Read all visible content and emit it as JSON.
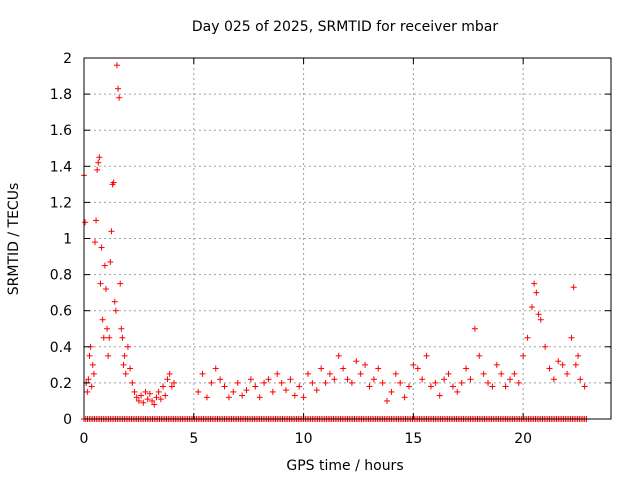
{
  "chart_data": {
    "type": "scatter",
    "title": "Day 025 of 2025, SRMTID for receiver mbar",
    "xlabel": "GPS time / hours",
    "ylabel": "SRMTID / TECUs",
    "xlim": [
      0,
      24
    ],
    "ylim": [
      0,
      2
    ],
    "xticks": [
      0,
      5,
      10,
      15,
      20
    ],
    "xtick_labels": [
      "0",
      "5",
      "10",
      "15",
      "20"
    ],
    "yticks": [
      0,
      0.2,
      0.4,
      0.6,
      0.8,
      1,
      1.2,
      1.4,
      1.6,
      1.8,
      2
    ],
    "ytick_labels": [
      "0",
      "0.2",
      "0.4",
      "0.6",
      "0.8",
      "1",
      "1.2",
      "1.4",
      "1.6",
      "1.8",
      "2"
    ],
    "grid": true,
    "marker": "+",
    "point_color": "#ff0000",
    "series": [
      {
        "name": "SRMTID",
        "points": [
          [
            0.0,
            1.35
          ],
          [
            0.05,
            1.09
          ],
          [
            0.1,
            0.2
          ],
          [
            0.15,
            0.15
          ],
          [
            0.2,
            0.22
          ],
          [
            0.25,
            0.35
          ],
          [
            0.3,
            0.4
          ],
          [
            0.35,
            0.18
          ],
          [
            0.4,
            0.3
          ],
          [
            0.45,
            0.25
          ],
          [
            0.5,
            0.98
          ],
          [
            0.55,
            1.1
          ],
          [
            0.6,
            1.38
          ],
          [
            0.65,
            1.42
          ],
          [
            0.7,
            1.45
          ],
          [
            0.75,
            0.75
          ],
          [
            0.8,
            0.95
          ],
          [
            0.85,
            0.55
          ],
          [
            0.9,
            0.45
          ],
          [
            0.95,
            0.85
          ],
          [
            1.0,
            0.72
          ],
          [
            1.05,
            0.5
          ],
          [
            1.1,
            0.35
          ],
          [
            1.15,
            0.45
          ],
          [
            1.2,
            0.87
          ],
          [
            1.25,
            1.04
          ],
          [
            1.3,
            1.3
          ],
          [
            1.35,
            1.31
          ],
          [
            1.4,
            0.65
          ],
          [
            1.45,
            0.6
          ],
          [
            1.5,
            1.96
          ],
          [
            1.55,
            1.83
          ],
          [
            1.6,
            1.78
          ],
          [
            1.65,
            0.75
          ],
          [
            1.7,
            0.5
          ],
          [
            1.75,
            0.45
          ],
          [
            1.8,
            0.3
          ],
          [
            1.85,
            0.35
          ],
          [
            1.9,
            0.25
          ],
          [
            2.0,
            0.4
          ],
          [
            2.1,
            0.28
          ],
          [
            2.2,
            0.2
          ],
          [
            2.3,
            0.15
          ],
          [
            2.4,
            0.12
          ],
          [
            2.5,
            0.1
          ],
          [
            2.6,
            0.13
          ],
          [
            2.7,
            0.09
          ],
          [
            2.8,
            0.15
          ],
          [
            2.9,
            0.11
          ],
          [
            3.0,
            0.14
          ],
          [
            3.1,
            0.1
          ],
          [
            3.2,
            0.08
          ],
          [
            3.3,
            0.12
          ],
          [
            3.4,
            0.15
          ],
          [
            3.5,
            0.11
          ],
          [
            3.6,
            0.18
          ],
          [
            3.7,
            0.13
          ],
          [
            3.8,
            0.22
          ],
          [
            3.9,
            0.25
          ],
          [
            4.0,
            0.18
          ],
          [
            4.1,
            0.2
          ],
          [
            5.2,
            0.15
          ],
          [
            5.4,
            0.25
          ],
          [
            5.6,
            0.12
          ],
          [
            5.8,
            0.2
          ],
          [
            6.0,
            0.28
          ],
          [
            6.2,
            0.22
          ],
          [
            6.4,
            0.18
          ],
          [
            6.6,
            0.12
          ],
          [
            6.8,
            0.15
          ],
          [
            7.0,
            0.2
          ],
          [
            7.2,
            0.13
          ],
          [
            7.4,
            0.16
          ],
          [
            7.6,
            0.22
          ],
          [
            7.8,
            0.18
          ],
          [
            8.0,
            0.12
          ],
          [
            8.2,
            0.2
          ],
          [
            8.4,
            0.22
          ],
          [
            8.6,
            0.15
          ],
          [
            8.8,
            0.25
          ],
          [
            9.0,
            0.2
          ],
          [
            9.2,
            0.16
          ],
          [
            9.4,
            0.22
          ],
          [
            9.6,
            0.13
          ],
          [
            9.8,
            0.18
          ],
          [
            10.0,
            0.12
          ],
          [
            10.2,
            0.25
          ],
          [
            10.4,
            0.2
          ],
          [
            10.6,
            0.16
          ],
          [
            10.8,
            0.28
          ],
          [
            11.0,
            0.2
          ],
          [
            11.2,
            0.25
          ],
          [
            11.4,
            0.22
          ],
          [
            11.6,
            0.35
          ],
          [
            11.8,
            0.28
          ],
          [
            12.0,
            0.22
          ],
          [
            12.2,
            0.2
          ],
          [
            12.4,
            0.32
          ],
          [
            12.6,
            0.25
          ],
          [
            12.8,
            0.3
          ],
          [
            13.0,
            0.18
          ],
          [
            13.2,
            0.22
          ],
          [
            13.4,
            0.28
          ],
          [
            13.6,
            0.2
          ],
          [
            13.8,
            0.1
          ],
          [
            14.0,
            0.15
          ],
          [
            14.2,
            0.25
          ],
          [
            14.4,
            0.2
          ],
          [
            14.6,
            0.12
          ],
          [
            14.8,
            0.18
          ],
          [
            15.0,
            0.3
          ],
          [
            15.2,
            0.28
          ],
          [
            15.4,
            0.22
          ],
          [
            15.6,
            0.35
          ],
          [
            15.8,
            0.18
          ],
          [
            16.0,
            0.2
          ],
          [
            16.2,
            0.13
          ],
          [
            16.4,
            0.22
          ],
          [
            16.6,
            0.25
          ],
          [
            16.8,
            0.18
          ],
          [
            17.0,
            0.15
          ],
          [
            17.2,
            0.2
          ],
          [
            17.4,
            0.28
          ],
          [
            17.6,
            0.22
          ],
          [
            17.8,
            0.5
          ],
          [
            18.0,
            0.35
          ],
          [
            18.2,
            0.25
          ],
          [
            18.4,
            0.2
          ],
          [
            18.6,
            0.18
          ],
          [
            18.8,
            0.3
          ],
          [
            19.0,
            0.25
          ],
          [
            19.2,
            0.18
          ],
          [
            19.4,
            0.22
          ],
          [
            19.6,
            0.25
          ],
          [
            19.8,
            0.2
          ],
          [
            20.0,
            0.35
          ],
          [
            20.2,
            0.45
          ],
          [
            20.4,
            0.62
          ],
          [
            20.5,
            0.75
          ],
          [
            20.6,
            0.7
          ],
          [
            20.7,
            0.58
          ],
          [
            20.8,
            0.55
          ],
          [
            21.0,
            0.4
          ],
          [
            21.2,
            0.28
          ],
          [
            21.4,
            0.22
          ],
          [
            21.6,
            0.32
          ],
          [
            21.8,
            0.3
          ],
          [
            22.0,
            0.25
          ],
          [
            22.2,
            0.45
          ],
          [
            22.3,
            0.73
          ],
          [
            22.4,
            0.3
          ],
          [
            22.5,
            0.35
          ],
          [
            22.6,
            0.22
          ],
          [
            22.8,
            0.18
          ]
        ],
        "zero_row_range": [
          0,
          22.9
        ]
      }
    ]
  }
}
